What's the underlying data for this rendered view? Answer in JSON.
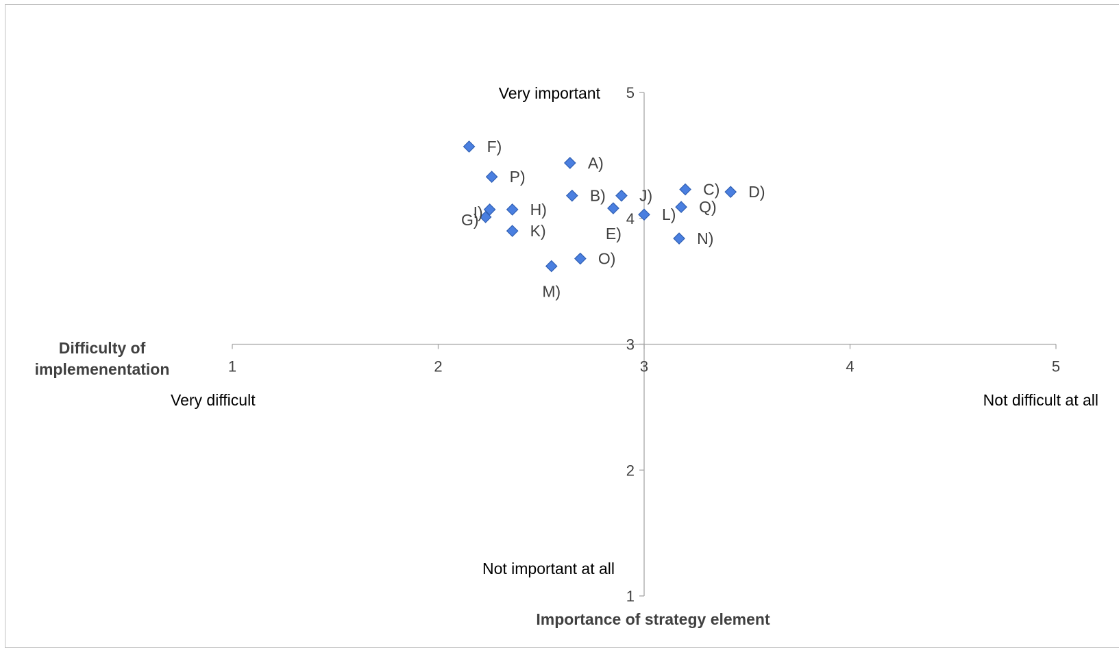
{
  "chart_data": {
    "type": "scatter",
    "title": "",
    "xlabel": "Difficulty of implemenentation",
    "ylabel": "Importance of strategy element",
    "xlim": [
      1,
      5
    ],
    "ylim": [
      1,
      5
    ],
    "x_ticks": [
      "1",
      "2",
      "3",
      "4",
      "5"
    ],
    "y_ticks": [
      "1",
      "2",
      "3",
      "4",
      "5"
    ],
    "axes_cross": [
      3,
      3
    ],
    "grid": false,
    "legend": "none",
    "marker": "diamond",
    "marker_color": "#4a7fe0",
    "marker_edge": "#2f5fb3",
    "annotations": {
      "y_max": "Very important",
      "y_min": "Not important at all",
      "x_min": "Very difficult",
      "x_max": "Not difficult at all"
    },
    "points": [
      {
        "label": "A)",
        "x": 2.64,
        "y": 4.44,
        "lx": 1,
        "ly": 0
      },
      {
        "label": "B)",
        "x": 2.65,
        "y": 4.18,
        "lx": 1,
        "ly": 0
      },
      {
        "label": "C)",
        "x": 3.2,
        "y": 4.23,
        "lx": 1,
        "ly": 0
      },
      {
        "label": "D)",
        "x": 3.42,
        "y": 4.21,
        "lx": 1,
        "ly": 0
      },
      {
        "label": "E)",
        "x": 2.85,
        "y": 4.08,
        "lx": -1,
        "ly": 1
      },
      {
        "label": "F)",
        "x": 2.15,
        "y": 4.57,
        "lx": 1,
        "ly": 0
      },
      {
        "label": "G)",
        "x": 2.23,
        "y": 4.01,
        "lx": -1,
        "ly": 0
      },
      {
        "label": "H)",
        "x": 2.36,
        "y": 4.07,
        "lx": 1,
        "ly": 0
      },
      {
        "label": "I)",
        "x": 2.25,
        "y": 4.07,
        "lx": -1,
        "ly": 0
      },
      {
        "label": "J)",
        "x": 2.89,
        "y": 4.18,
        "lx": 1,
        "ly": 0
      },
      {
        "label": "K)",
        "x": 2.36,
        "y": 3.9,
        "lx": 1,
        "ly": 0
      },
      {
        "label": "L)",
        "x": 3.0,
        "y": 4.03,
        "lx": 1,
        "ly": 0
      },
      {
        "label": "M)",
        "x": 2.55,
        "y": 3.62,
        "lx": 0,
        "ly": 1
      },
      {
        "label": "N)",
        "x": 3.17,
        "y": 3.84,
        "lx": 1,
        "ly": 0
      },
      {
        "label": "O)",
        "x": 2.69,
        "y": 3.68,
        "lx": 1,
        "ly": 0
      },
      {
        "label": "P)",
        "x": 2.26,
        "y": 4.33,
        "lx": 1,
        "ly": 0
      },
      {
        "label": "Q)",
        "x": 3.18,
        "y": 4.09,
        "lx": 1,
        "ly": 0
      }
    ]
  }
}
